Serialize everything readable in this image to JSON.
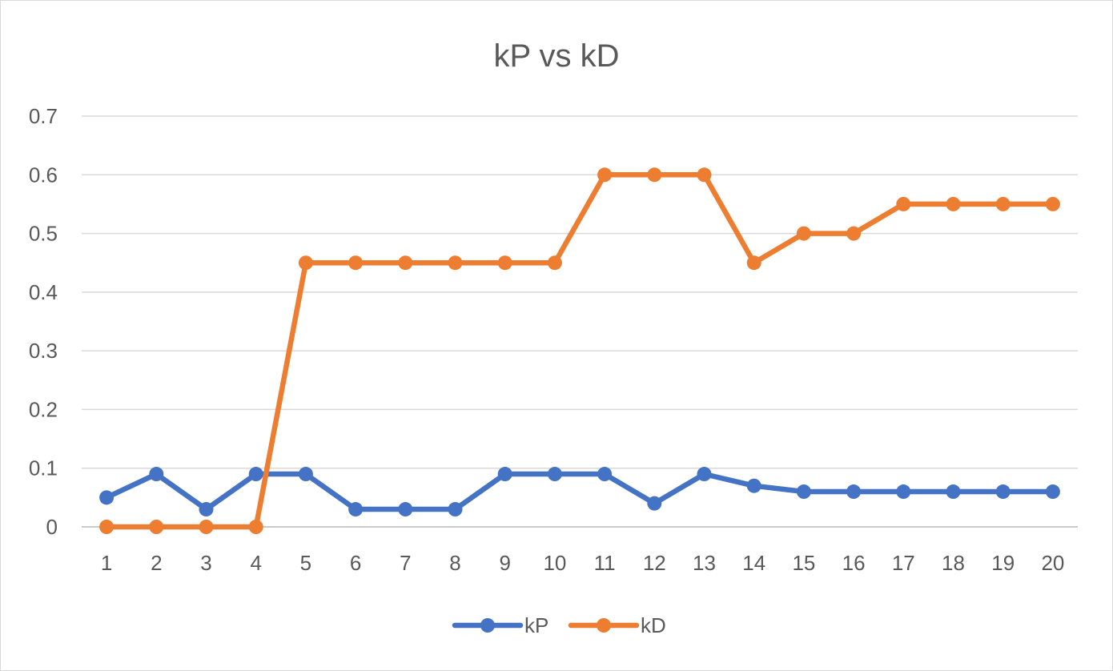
{
  "chart_data": {
    "type": "line",
    "title": "kP vs kD",
    "xlabel": "",
    "ylabel": "",
    "categories": [
      "1",
      "2",
      "3",
      "4",
      "5",
      "6",
      "7",
      "8",
      "9",
      "10",
      "11",
      "12",
      "13",
      "14",
      "15",
      "16",
      "17",
      "18",
      "19",
      "20"
    ],
    "y_ticks": [
      "0",
      "0.1",
      "0.2",
      "0.3",
      "0.4",
      "0.5",
      "0.6",
      "0.7"
    ],
    "ylim": [
      0,
      0.7
    ],
    "grid": true,
    "legend_position": "bottom",
    "series": [
      {
        "name": "kP",
        "color": "#4472C4",
        "values": [
          0.05,
          0.09,
          0.03,
          0.09,
          0.09,
          0.03,
          0.03,
          0.03,
          0.09,
          0.09,
          0.09,
          0.04,
          0.09,
          0.07,
          0.06,
          0.06,
          0.06,
          0.06,
          0.06,
          0.06
        ]
      },
      {
        "name": "kD",
        "color": "#ED7D31",
        "values": [
          0,
          0,
          0,
          0,
          0.45,
          0.45,
          0.45,
          0.45,
          0.45,
          0.45,
          0.6,
          0.6,
          0.6,
          0.45,
          0.5,
          0.5,
          0.55,
          0.55,
          0.55,
          0.55
        ]
      }
    ]
  }
}
